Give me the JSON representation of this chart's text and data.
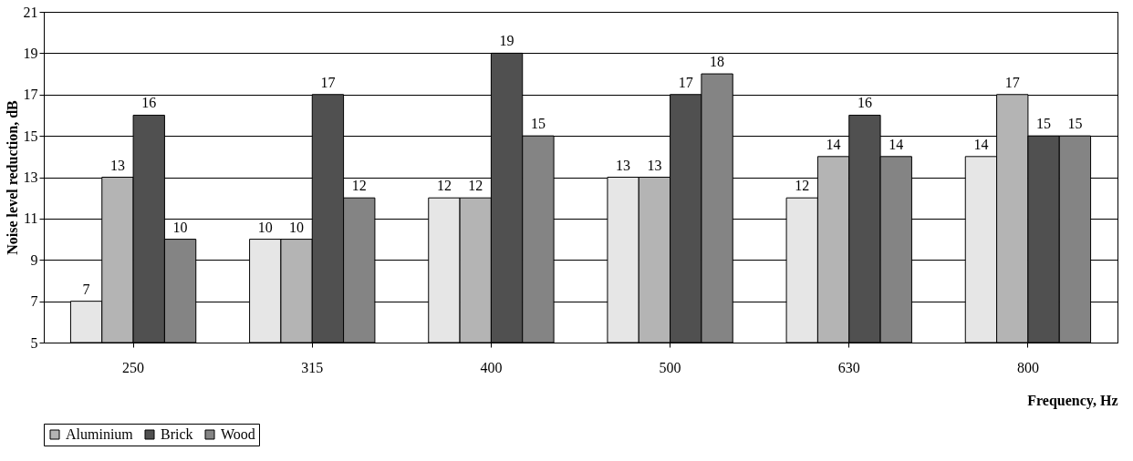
{
  "chart_data": {
    "type": "bar",
    "xlabel": "Frequency, Hz",
    "ylabel": "Noise level reduction, dB",
    "categories": [
      "250",
      "315",
      "400",
      "500",
      "630",
      "800"
    ],
    "series": [
      {
        "color": "#e6e6e6",
        "values": [
          7,
          10,
          12,
          13,
          12,
          14
        ]
      },
      {
        "name": "Aluminium",
        "color": "#b4b4b4",
        "values": [
          13,
          10,
          12,
          13,
          14,
          17
        ]
      },
      {
        "name": "Brick",
        "color": "#505050",
        "values": [
          16,
          17,
          19,
          17,
          16,
          15
        ]
      },
      {
        "name": "Wood",
        "color": "#848484",
        "values": [
          10,
          12,
          15,
          18,
          14,
          15
        ]
      }
    ],
    "ylim": [
      5,
      21
    ],
    "yticks": [
      5,
      7,
      9,
      11,
      13,
      15,
      17,
      19,
      21
    ],
    "grid": "y",
    "data_labels": true,
    "legend": "bottom"
  }
}
